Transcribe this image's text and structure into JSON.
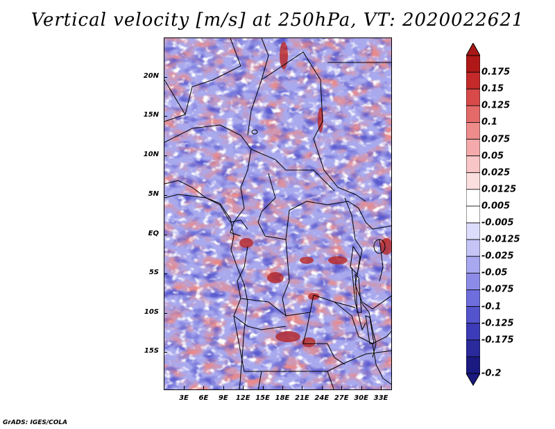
{
  "title": "Vertical velocity [m/s] at 250hPa, VT: 2020022621",
  "footer": "GrADS: IGES/COLA",
  "map": {
    "lat_labels": [
      "20N",
      "15N",
      "10N",
      "5N",
      "EQ",
      "5S",
      "10S",
      "15S"
    ],
    "lon_labels": [
      "3E",
      "6E",
      "9E",
      "12E",
      "15E",
      "18E",
      "21E",
      "24E",
      "27E",
      "30E",
      "33E"
    ]
  },
  "colorbar": {
    "labels": [
      "0.175",
      "0.15",
      "0.125",
      "0.1",
      "0.075",
      "0.05",
      "0.025",
      "0.0125",
      "0.005",
      "-0.005",
      "-0.0125",
      "-0.025",
      "-0.05",
      "-0.075",
      "-0.1",
      "-0.125",
      "-0.175",
      "-0.2"
    ],
    "colors": [
      "#b01818",
      "#c42a2a",
      "#d84a4a",
      "#e46a6a",
      "#ee8c8c",
      "#f4aaaa",
      "#f8c6c6",
      "#fbdede",
      "#ffffff",
      "#ffffff",
      "#dcdcfc",
      "#c4c4f6",
      "#a8a8f0",
      "#8c8ce8",
      "#6e6edc",
      "#5454cc",
      "#3c3cb8",
      "#2a2a9c",
      "#1a1a80"
    ],
    "top_color": "#a81818",
    "bottom_color": "#1a1a80"
  }
}
